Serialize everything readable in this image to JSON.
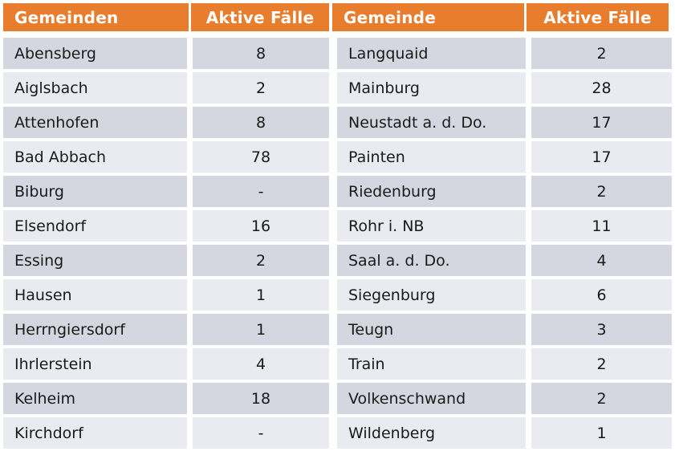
{
  "colors": {
    "header_bg": "#E87D2E",
    "header_text": "#FFFFFF",
    "row_dark": "#D5D7E0",
    "row_light": "#EAEBF1",
    "body_text": "#1A1A1A"
  },
  "tables": [
    {
      "headers": [
        "Gemeinden",
        "Aktive Fälle"
      ],
      "rows": [
        {
          "name": "Abensberg",
          "cases": "8"
        },
        {
          "name": "Aiglsbach",
          "cases": "2"
        },
        {
          "name": "Attenhofen",
          "cases": "8"
        },
        {
          "name": "Bad Abbach",
          "cases": "78"
        },
        {
          "name": "Biburg",
          "cases": "-"
        },
        {
          "name": "Elsendorf",
          "cases": "16"
        },
        {
          "name": "Essing",
          "cases": "2"
        },
        {
          "name": "Hausen",
          "cases": "1"
        },
        {
          "name": "Herrngiersdorf",
          "cases": "1"
        },
        {
          "name": "Ihrlerstein",
          "cases": "4"
        },
        {
          "name": "Kelheim",
          "cases": "18"
        },
        {
          "name": "Kirchdorf",
          "cases": "-"
        }
      ]
    },
    {
      "headers": [
        "Gemeinde",
        "Aktive Fälle"
      ],
      "rows": [
        {
          "name": "Langquaid",
          "cases": "2"
        },
        {
          "name": "Mainburg",
          "cases": "28"
        },
        {
          "name": "Neustadt a. d. Do.",
          "cases": "17"
        },
        {
          "name": "Painten",
          "cases": "17"
        },
        {
          "name": "Riedenburg",
          "cases": "2"
        },
        {
          "name": "Rohr i. NB",
          "cases": "11"
        },
        {
          "name": "Saal a. d. Do.",
          "cases": "4"
        },
        {
          "name": "Siegenburg",
          "cases": "6"
        },
        {
          "name": "Teugn",
          "cases": "3"
        },
        {
          "name": "Train",
          "cases": "2"
        },
        {
          "name": "Volkenschwand",
          "cases": "2"
        },
        {
          "name": "Wildenberg",
          "cases": "1"
        }
      ]
    }
  ]
}
